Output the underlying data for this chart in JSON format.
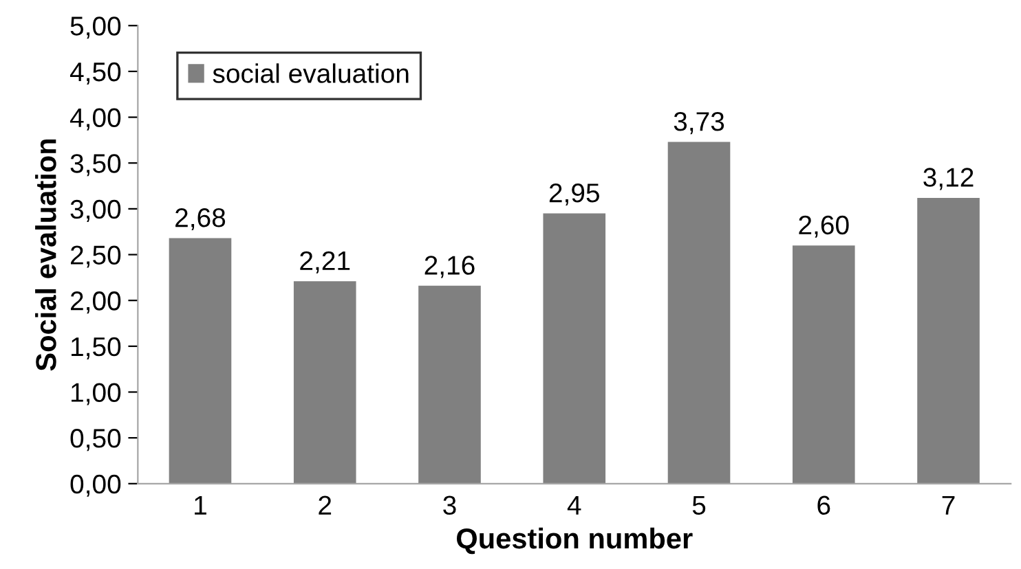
{
  "chart_data": {
    "type": "bar",
    "xlabel": "Question number",
    "ylabel": "Social evaluation",
    "categories": [
      "1",
      "2",
      "3",
      "4",
      "5",
      "6",
      "7"
    ],
    "series": [
      {
        "name": "social evaluation",
        "color": "#808080",
        "values": [
          2.68,
          2.21,
          2.16,
          2.95,
          3.73,
          2.6,
          3.12
        ],
        "value_labels": [
          "2,68",
          "2,21",
          "2,16",
          "2,95",
          "3,73",
          "2,60",
          "3,12"
        ]
      }
    ],
    "ylim": [
      0,
      5
    ],
    "yticks": [
      {
        "value": 0,
        "label": "0,00"
      },
      {
        "value": 0.5,
        "label": "0,50"
      },
      {
        "value": 1,
        "label": "1,00"
      },
      {
        "value": 1.5,
        "label": "1,50"
      },
      {
        "value": 2,
        "label": "2,00"
      },
      {
        "value": 2.5,
        "label": "2,50"
      },
      {
        "value": 3,
        "label": "3,00"
      },
      {
        "value": 3.5,
        "label": "3,50"
      },
      {
        "value": 4,
        "label": "4,00"
      },
      {
        "value": 4.5,
        "label": "4,50"
      },
      {
        "value": 5,
        "label": "5,00"
      }
    ],
    "grid": false,
    "legend": "top left"
  }
}
